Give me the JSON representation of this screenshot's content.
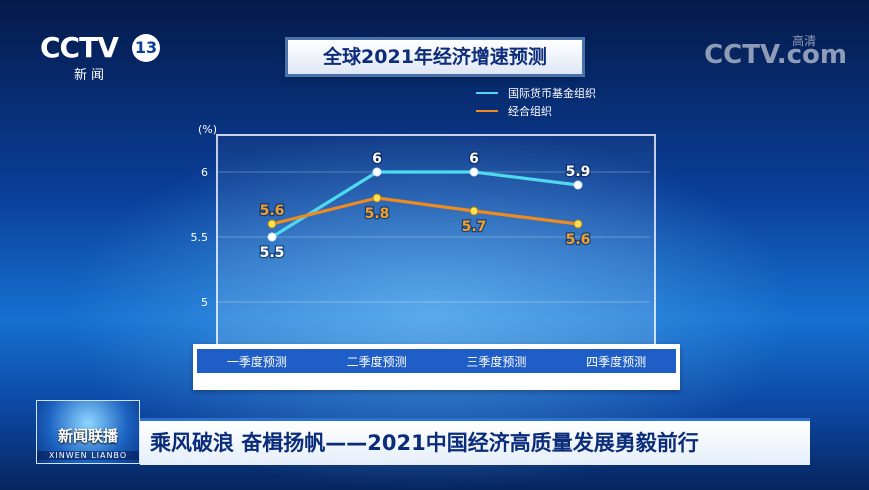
{
  "channel_logo": {
    "brand": "CCTV",
    "number": "13",
    "subtitle": "新闻"
  },
  "watermark": {
    "text": "CCTV.com",
    "badge": "高清"
  },
  "chart_data": {
    "type": "line",
    "title": "全球2021年经济增速预测",
    "ylabel": "(%)",
    "categories": [
      "一季度预测",
      "二季度预测",
      "三季度预测",
      "四季度预测"
    ],
    "yticks": [
      "6",
      "5.5",
      "5"
    ],
    "ylim": [
      4.9,
      6.2
    ],
    "legend_position": "top-right",
    "series": [
      {
        "name": "国际货币基金组织",
        "values": [
          5.5,
          6,
          6,
          5.9
        ],
        "labels": [
          "5.5",
          "6",
          "6",
          "5.9"
        ],
        "color": "#4fd8ee",
        "label_color": "#ffffff",
        "label_side": [
          "below",
          "above",
          "above",
          "above"
        ]
      },
      {
        "name": "经合组织",
        "values": [
          5.6,
          5.8,
          5.7,
          5.6
        ],
        "labels": [
          "5.6",
          "5.8",
          "5.7",
          "5.6"
        ],
        "color": "#ee8a1e",
        "label_color": "#f3a12a",
        "label_side": [
          "above",
          "below",
          "below",
          "below"
        ]
      }
    ]
  },
  "news": {
    "program_name": "新闻联播",
    "program_pinyin": "XINWEN LIANBO",
    "headline": "乘风破浪 奋楫扬帆——2021中国经济高质量发展勇毅前行"
  }
}
